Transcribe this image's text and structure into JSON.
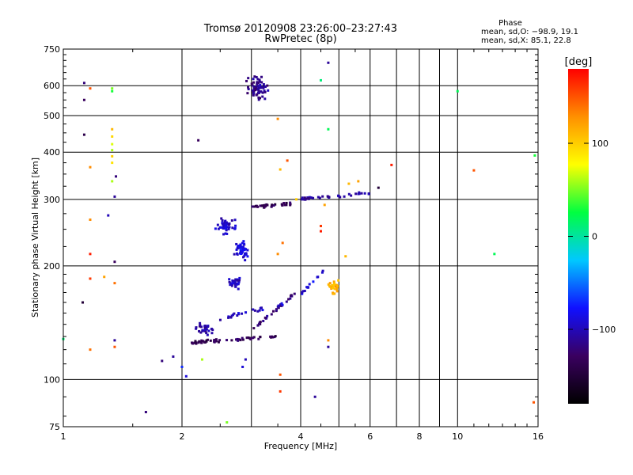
{
  "chart_data": {
    "type": "scatter",
    "title": "Tromsø 20120908 23:26:00–23:27:43",
    "subtitle": "RwPretec (8p)",
    "xlabel": "Frequency [MHz]",
    "ylabel": "Stationary phase Virtual Height [km]",
    "x_scale": "log",
    "y_scale": "log",
    "xlim": [
      1,
      16
    ],
    "ylim": [
      75,
      750
    ],
    "x_ticks": [
      1,
      2,
      4,
      6,
      8,
      10,
      16
    ],
    "x_ticklabels": [
      "1",
      "2",
      "4",
      "6",
      "8",
      "10",
      "16"
    ],
    "y_ticks": [
      75,
      100,
      200,
      300,
      400,
      500,
      600,
      750
    ],
    "y_ticklabels": [
      "75",
      "100",
      "200",
      "300",
      "400",
      "500",
      "600",
      "750"
    ],
    "grid": true,
    "stats": {
      "heading": "Phase",
      "line1": "mean, sd,O: −98.9, 19.1",
      "line2": "mean, sd,X:  85.1, 22.8"
    },
    "colorbar": {
      "label": "[deg]",
      "ticks": [
        100,
        0,
        -100
      ],
      "ticklabels": [
        "100",
        "0",
        "−100"
      ],
      "range": [
        -180,
        180
      ],
      "colors": [
        "#000000",
        "#3a0060",
        "#1010ff",
        "#00c8ff",
        "#00ff40",
        "#ffff00",
        "#ff9000",
        "#ff0000"
      ]
    },
    "clusters": [
      {
        "x": 3.1,
        "y": 590,
        "dx": 0.08,
        "dy": 0.1,
        "n": 70,
        "phase": -115
      },
      {
        "x": 2.6,
        "y": 255,
        "dx": 0.07,
        "dy": 0.06,
        "n": 45,
        "phase": -95
      },
      {
        "x": 2.85,
        "y": 220,
        "dx": 0.06,
        "dy": 0.07,
        "n": 50,
        "phase": -90
      },
      {
        "x": 2.75,
        "y": 180,
        "dx": 0.06,
        "dy": 0.05,
        "n": 30,
        "phase": -100
      },
      {
        "x": 4.9,
        "y": 175,
        "dx": 0.05,
        "dy": 0.06,
        "n": 30,
        "phase": 115
      },
      {
        "x": 2.3,
        "y": 135,
        "dx": 0.07,
        "dy": 0.05,
        "n": 30,
        "phase": -105
      }
    ],
    "tracks": [
      {
        "x0": 3.0,
        "x1": 3.8,
        "y0": 285,
        "y1": 292,
        "n": 30,
        "phase": -135
      },
      {
        "x0": 4.0,
        "x1": 6.2,
        "y0": 300,
        "y1": 312,
        "n": 35,
        "phase": -110
      },
      {
        "x0": 2.1,
        "x1": 3.5,
        "y0": 125,
        "y1": 130,
        "n": 55,
        "phase": -135
      },
      {
        "x0": 3.0,
        "x1": 3.9,
        "y0": 135,
        "y1": 170,
        "n": 30,
        "phase": -120
      },
      {
        "x0": 2.5,
        "x1": 3.6,
        "y0": 145,
        "y1": 158,
        "n": 25,
        "phase": -100
      },
      {
        "x0": 4.0,
        "x1": 4.6,
        "y0": 168,
        "y1": 195,
        "n": 15,
        "phase": -95
      }
    ],
    "points": [
      {
        "x": 1.13,
        "y": 610,
        "phase": -120
      },
      {
        "x": 1.13,
        "y": 550,
        "phase": -130
      },
      {
        "x": 1.17,
        "y": 590,
        "phase": 150
      },
      {
        "x": 1.33,
        "y": 590,
        "phase": 50
      },
      {
        "x": 1.33,
        "y": 580,
        "phase": 30
      },
      {
        "x": 1.13,
        "y": 445,
        "phase": -140
      },
      {
        "x": 1.33,
        "y": 460,
        "phase": 110
      },
      {
        "x": 1.33,
        "y": 440,
        "phase": 95
      },
      {
        "x": 1.33,
        "y": 420,
        "phase": 70
      },
      {
        "x": 1.33,
        "y": 405,
        "phase": 60
      },
      {
        "x": 1.33,
        "y": 390,
        "phase": 100
      },
      {
        "x": 1.33,
        "y": 375,
        "phase": 90
      },
      {
        "x": 1.17,
        "y": 365,
        "phase": 130
      },
      {
        "x": 1.36,
        "y": 345,
        "phase": -120
      },
      {
        "x": 1.33,
        "y": 335,
        "phase": 60
      },
      {
        "x": 1.35,
        "y": 305,
        "phase": -110
      },
      {
        "x": 1.3,
        "y": 272,
        "phase": -100
      },
      {
        "x": 1.17,
        "y": 265,
        "phase": 130
      },
      {
        "x": 1.17,
        "y": 215,
        "phase": 170
      },
      {
        "x": 1.35,
        "y": 205,
        "phase": -130
      },
      {
        "x": 1.17,
        "y": 185,
        "phase": 160
      },
      {
        "x": 1.27,
        "y": 187,
        "phase": 120
      },
      {
        "x": 1.35,
        "y": 180,
        "phase": 140
      },
      {
        "x": 1.12,
        "y": 160,
        "phase": -150
      },
      {
        "x": 1.35,
        "y": 127,
        "phase": -110
      },
      {
        "x": 1.35,
        "y": 122,
        "phase": 150
      },
      {
        "x": 1.17,
        "y": 120,
        "phase": 140
      },
      {
        "x": 1.0,
        "y": 128,
        "phase": 10
      },
      {
        "x": 1.62,
        "y": 82,
        "phase": -120
      },
      {
        "x": 2.6,
        "y": 77,
        "phase": 50
      },
      {
        "x": 2.2,
        "y": 430,
        "phase": -130
      },
      {
        "x": 3.5,
        "y": 490,
        "phase": 130
      },
      {
        "x": 4.5,
        "y": 620,
        "phase": 10
      },
      {
        "x": 4.7,
        "y": 690,
        "phase": -110
      },
      {
        "x": 4.7,
        "y": 460,
        "phase": 20
      },
      {
        "x": 10.0,
        "y": 580,
        "phase": 20
      },
      {
        "x": 15.7,
        "y": 392,
        "phase": 30
      },
      {
        "x": 6.8,
        "y": 370,
        "phase": 170
      },
      {
        "x": 11.0,
        "y": 358,
        "phase": 150
      },
      {
        "x": 12.4,
        "y": 215,
        "phase": 20
      },
      {
        "x": 15.6,
        "y": 87,
        "phase": 150
      },
      {
        "x": 3.55,
        "y": 103,
        "phase": 150
      },
      {
        "x": 3.55,
        "y": 93,
        "phase": 160
      },
      {
        "x": 4.35,
        "y": 90,
        "phase": -110
      },
      {
        "x": 4.7,
        "y": 122,
        "phase": -110
      },
      {
        "x": 4.7,
        "y": 127,
        "phase": 130
      },
      {
        "x": 6.3,
        "y": 322,
        "phase": -150
      },
      {
        "x": 4.5,
        "y": 255,
        "phase": 160
      },
      {
        "x": 4.5,
        "y": 247,
        "phase": 170
      },
      {
        "x": 3.5,
        "y": 215,
        "phase": 130
      },
      {
        "x": 3.6,
        "y": 230,
        "phase": 140
      },
      {
        "x": 3.7,
        "y": 380,
        "phase": 150
      },
      {
        "x": 3.55,
        "y": 360,
        "phase": 110
      },
      {
        "x": 3.9,
        "y": 300,
        "phase": 100
      },
      {
        "x": 4.6,
        "y": 290,
        "phase": 120
      },
      {
        "x": 5.3,
        "y": 330,
        "phase": 110
      },
      {
        "x": 5.6,
        "y": 335,
        "phase": 120
      },
      {
        "x": 5.2,
        "y": 212,
        "phase": 110
      },
      {
        "x": 2.0,
        "y": 108,
        "phase": -70
      },
      {
        "x": 1.9,
        "y": 115,
        "phase": -110
      },
      {
        "x": 1.78,
        "y": 112,
        "phase": -120
      },
      {
        "x": 2.25,
        "y": 113,
        "phase": 60
      },
      {
        "x": 2.85,
        "y": 108,
        "phase": -90
      },
      {
        "x": 2.9,
        "y": 113,
        "phase": -100
      },
      {
        "x": 2.05,
        "y": 102,
        "phase": -90
      },
      {
        "x": 4.1,
        "y": 303,
        "phase": -120
      }
    ]
  }
}
